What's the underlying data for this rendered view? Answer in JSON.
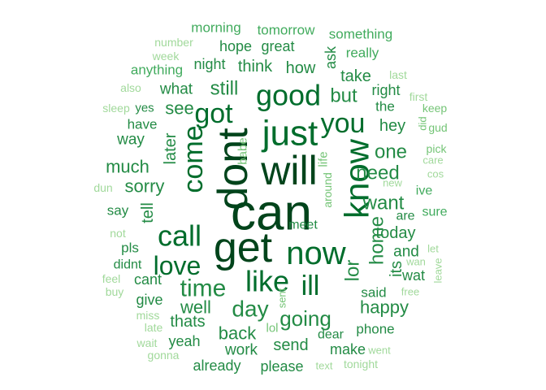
{
  "palette": {
    "c1": "#00441b",
    "c2": "#006d2c",
    "c3": "#238b45",
    "c4": "#41ab5d",
    "c5": "#74c476",
    "c6": "#a1d99b"
  },
  "words": [
    {
      "text": "can",
      "freq": 100,
      "tone": "c1"
    },
    {
      "text": "will",
      "freq": 92,
      "tone": "c1"
    },
    {
      "text": "dont",
      "freq": 90,
      "tone": "c1"
    },
    {
      "text": "get",
      "freq": 88,
      "tone": "c1"
    },
    {
      "text": "just",
      "freq": 75,
      "tone": "c2"
    },
    {
      "text": "know",
      "freq": 74,
      "tone": "c2"
    },
    {
      "text": "now",
      "freq": 70,
      "tone": "c2"
    },
    {
      "text": "good",
      "freq": 65,
      "tone": "c2"
    },
    {
      "text": "call",
      "freq": 62,
      "tone": "c2"
    },
    {
      "text": "like",
      "freq": 60,
      "tone": "c2"
    },
    {
      "text": "come",
      "freq": 55,
      "tone": "c2"
    },
    {
      "text": "you",
      "freq": 54,
      "tone": "c2"
    },
    {
      "text": "got",
      "freq": 52,
      "tone": "c2"
    },
    {
      "text": "love",
      "freq": 50,
      "tone": "c2"
    },
    {
      "text": "ill",
      "freq": 50,
      "tone": "c2"
    },
    {
      "text": "time",
      "freq": 48,
      "tone": "c3"
    },
    {
      "text": "day",
      "freq": 46,
      "tone": "c3"
    },
    {
      "text": "going",
      "freq": 44,
      "tone": "c3"
    },
    {
      "text": "home",
      "freq": 42,
      "tone": "c3"
    },
    {
      "text": "lor",
      "freq": 40,
      "tone": "c3"
    },
    {
      "text": "want",
      "freq": 40,
      "tone": "c3"
    },
    {
      "text": "but",
      "freq": 40,
      "tone": "c3"
    },
    {
      "text": "need",
      "freq": 38,
      "tone": "c3"
    },
    {
      "text": "one",
      "freq": 38,
      "tone": "c3"
    },
    {
      "text": "still",
      "freq": 38,
      "tone": "c3"
    },
    {
      "text": "sorry",
      "freq": 36,
      "tone": "c3"
    },
    {
      "text": "well",
      "freq": 36,
      "tone": "c3"
    },
    {
      "text": "back",
      "freq": 36,
      "tone": "c3"
    },
    {
      "text": "see",
      "freq": 34,
      "tone": "c3"
    },
    {
      "text": "much",
      "freq": 34,
      "tone": "c3"
    },
    {
      "text": "send",
      "freq": 34,
      "tone": "c3"
    },
    {
      "text": "happy",
      "freq": 34,
      "tone": "c3"
    },
    {
      "text": "today",
      "freq": 34,
      "tone": "c3"
    },
    {
      "text": "later",
      "freq": 32,
      "tone": "c3"
    },
    {
      "text": "its",
      "freq": 32,
      "tone": "c3"
    },
    {
      "text": "tell",
      "freq": 32,
      "tone": "c3"
    },
    {
      "text": "thats",
      "freq": 32,
      "tone": "c3"
    },
    {
      "text": "hey",
      "freq": 32,
      "tone": "c3"
    },
    {
      "text": "what",
      "freq": 30,
      "tone": "c3"
    },
    {
      "text": "how",
      "freq": 30,
      "tone": "c3"
    },
    {
      "text": "think",
      "freq": 30,
      "tone": "c3"
    },
    {
      "text": "take",
      "freq": 30,
      "tone": "c3"
    },
    {
      "text": "way",
      "freq": 30,
      "tone": "c3"
    },
    {
      "text": "work",
      "freq": 30,
      "tone": "c3"
    },
    {
      "text": "and",
      "freq": 30,
      "tone": "c3"
    },
    {
      "text": "wat",
      "freq": 28,
      "tone": "c3"
    },
    {
      "text": "make",
      "freq": 28,
      "tone": "c3"
    },
    {
      "text": "cant",
      "freq": 28,
      "tone": "c3"
    },
    {
      "text": "give",
      "freq": 28,
      "tone": "c3"
    },
    {
      "text": "said",
      "freq": 28,
      "tone": "c3"
    },
    {
      "text": "yeah",
      "freq": 28,
      "tone": "c3"
    },
    {
      "text": "already",
      "freq": 28,
      "tone": "c3"
    },
    {
      "text": "please",
      "freq": 28,
      "tone": "c3"
    },
    {
      "text": "have",
      "freq": 28,
      "tone": "c3"
    },
    {
      "text": "night",
      "freq": 28,
      "tone": "c3"
    },
    {
      "text": "hope",
      "freq": 28,
      "tone": "c3"
    },
    {
      "text": "great",
      "freq": 28,
      "tone": "c3"
    },
    {
      "text": "ask",
      "freq": 26,
      "tone": "c3"
    },
    {
      "text": "right",
      "freq": 26,
      "tone": "c3"
    },
    {
      "text": "pls",
      "freq": 26,
      "tone": "c3"
    },
    {
      "text": "phone",
      "freq": 26,
      "tone": "c3"
    },
    {
      "text": "say",
      "freq": 26,
      "tone": "c3"
    },
    {
      "text": "the",
      "freq": 26,
      "tone": "c3"
    },
    {
      "text": "are",
      "freq": 26,
      "tone": "c3"
    },
    {
      "text": "dear",
      "freq": 24,
      "tone": "c3"
    },
    {
      "text": "didnt",
      "freq": 24,
      "tone": "c3"
    },
    {
      "text": "meet",
      "freq": 24,
      "tone": "c3"
    },
    {
      "text": "yes",
      "freq": 24,
      "tone": "c3"
    },
    {
      "text": "morning",
      "freq": 24,
      "tone": "c4"
    },
    {
      "text": "tomorrow",
      "freq": 24,
      "tone": "c4"
    },
    {
      "text": "something",
      "freq": 24,
      "tone": "c4"
    },
    {
      "text": "anything",
      "freq": 24,
      "tone": "c4"
    },
    {
      "text": "really",
      "freq": 24,
      "tone": "c4"
    },
    {
      "text": "sure",
      "freq": 22,
      "tone": "c4"
    },
    {
      "text": "ive",
      "freq": 22,
      "tone": "c4"
    },
    {
      "text": "around",
      "freq": 20,
      "tone": "c5"
    },
    {
      "text": "life",
      "freq": 20,
      "tone": "c5"
    },
    {
      "text": "babe",
      "freq": 20,
      "tone": "c5"
    },
    {
      "text": "lol",
      "freq": 20,
      "tone": "c5"
    },
    {
      "text": "sent",
      "freq": 18,
      "tone": "c5"
    },
    {
      "text": "pick",
      "freq": 20,
      "tone": "c5"
    },
    {
      "text": "keep",
      "freq": 20,
      "tone": "c5"
    },
    {
      "text": "gud",
      "freq": 20,
      "tone": "c5"
    },
    {
      "text": "did",
      "freq": 18,
      "tone": "c5"
    },
    {
      "text": "first",
      "freq": 20,
      "tone": "c6"
    },
    {
      "text": "last",
      "freq": 20,
      "tone": "c6"
    },
    {
      "text": "care",
      "freq": 18,
      "tone": "c6"
    },
    {
      "text": "cos",
      "freq": 18,
      "tone": "c6"
    },
    {
      "text": "new",
      "freq": 18,
      "tone": "c6"
    },
    {
      "text": "let",
      "freq": 18,
      "tone": "c6"
    },
    {
      "text": "wan",
      "freq": 18,
      "tone": "c6"
    },
    {
      "text": "leave",
      "freq": 18,
      "tone": "c6"
    },
    {
      "text": "free",
      "freq": 18,
      "tone": "c6"
    },
    {
      "text": "went",
      "freq": 18,
      "tone": "c6"
    },
    {
      "text": "text",
      "freq": 18,
      "tone": "c6"
    },
    {
      "text": "tonight",
      "freq": 20,
      "tone": "c6"
    },
    {
      "text": "number",
      "freq": 18,
      "tone": "c6"
    },
    {
      "text": "week",
      "freq": 18,
      "tone": "c6"
    },
    {
      "text": "also",
      "freq": 18,
      "tone": "c6"
    },
    {
      "text": "sleep",
      "freq": 18,
      "tone": "c6"
    },
    {
      "text": "dun",
      "freq": 18,
      "tone": "c6"
    },
    {
      "text": "not",
      "freq": 18,
      "tone": "c6"
    },
    {
      "text": "feel",
      "freq": 18,
      "tone": "c6"
    },
    {
      "text": "buy",
      "freq": 18,
      "tone": "c6"
    },
    {
      "text": "miss",
      "freq": 18,
      "tone": "c6"
    },
    {
      "text": "late",
      "freq": 18,
      "tone": "c6"
    },
    {
      "text": "wait",
      "freq": 18,
      "tone": "c6"
    },
    {
      "text": "gonna",
      "freq": 18,
      "tone": "c6"
    }
  ]
}
